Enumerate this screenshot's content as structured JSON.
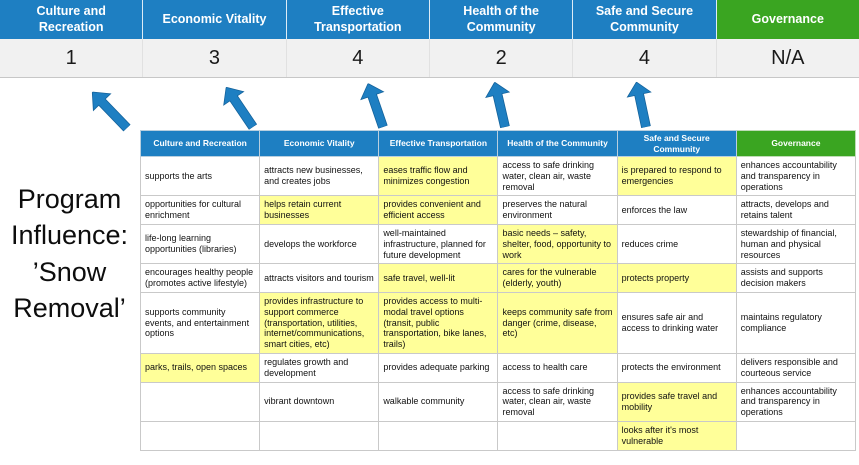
{
  "title": {
    "lines": [
      "Program",
      "Influence:",
      "’Snow",
      "Removal’"
    ]
  },
  "colors": {
    "header_blue": "#1E7FC2",
    "header_green": "#3AA521",
    "highlight_yellow": "#FFFF99",
    "score_band": "#F1F1F1",
    "arrow_blue": "#1E7FC2"
  },
  "scoreboard": {
    "columns": [
      {
        "label": "Culture and Recreation",
        "score": "1",
        "accent": "blue"
      },
      {
        "label": "Economic Vitality",
        "score": "3",
        "accent": "blue"
      },
      {
        "label": "Effective Transportation",
        "score": "4",
        "accent": "blue"
      },
      {
        "label": "Health of the Community",
        "score": "2",
        "accent": "blue"
      },
      {
        "label": "Safe and Secure Community",
        "score": "4",
        "accent": "blue"
      },
      {
        "label": "Governance",
        "score": "N/A",
        "accent": "green"
      }
    ]
  },
  "matrix": {
    "headers": [
      {
        "label": "Culture and Recreation",
        "accent": "blue"
      },
      {
        "label": "Economic Vitality",
        "accent": "blue"
      },
      {
        "label": "Effective Transportation",
        "accent": "blue"
      },
      {
        "label": "Health of the Community",
        "accent": "blue"
      },
      {
        "label": "Safe and Secure Community",
        "accent": "blue"
      },
      {
        "label": "Governance",
        "accent": "green"
      }
    ],
    "rows": [
      [
        {
          "text": "supports the arts",
          "highlight": false
        },
        {
          "text": "attracts new businesses, and creates jobs",
          "highlight": false
        },
        {
          "text": "eases traffic flow and minimizes congestion",
          "highlight": true
        },
        {
          "text": "access to safe drinking water, clean air, waste removal",
          "highlight": false
        },
        {
          "text": "is prepared to respond to emergencies",
          "highlight": true
        },
        {
          "text": "enhances accountability and transparency in operations",
          "highlight": false
        }
      ],
      [
        {
          "text": "opportunities for cultural enrichment",
          "highlight": false
        },
        {
          "text": "helps retain current businesses",
          "highlight": true
        },
        {
          "text": "provides convenient and efficient access",
          "highlight": true
        },
        {
          "text": "preserves the natural environment",
          "highlight": false
        },
        {
          "text": "enforces the law",
          "highlight": false
        },
        {
          "text": "attracts, develops and retains talent",
          "highlight": false
        }
      ],
      [
        {
          "text": "life-long learning opportunities (libraries)",
          "highlight": false
        },
        {
          "text": "develops the workforce",
          "highlight": false
        },
        {
          "text": "well-maintained infrastructure, planned for future development",
          "highlight": false
        },
        {
          "text": "basic needs – safety, shelter, food, opportunity to work",
          "highlight": true
        },
        {
          "text": "reduces crime",
          "highlight": false
        },
        {
          "text": "stewardship of financial, human and physical resources",
          "highlight": false
        }
      ],
      [
        {
          "text": "encourages healthy people (promotes active lifestyle)",
          "highlight": false
        },
        {
          "text": "attracts visitors and tourism",
          "highlight": false
        },
        {
          "text": "safe travel, well-lit",
          "highlight": true
        },
        {
          "text": "cares for the vulnerable (elderly, youth)",
          "highlight": true
        },
        {
          "text": "protects property",
          "highlight": true
        },
        {
          "text": "assists and supports decision makers",
          "highlight": false
        }
      ],
      [
        {
          "text": "supports community events, and entertainment options",
          "highlight": false
        },
        {
          "text": "provides infrastructure to support commerce (transportation, utilities, internet/communications, smart cities, etc)",
          "highlight": true
        },
        {
          "text": "provides access to multi-modal travel options (transit, public transportation, bike lanes, trails)",
          "highlight": true
        },
        {
          "text": "keeps community safe from danger (crime, disease, etc)",
          "highlight": true
        },
        {
          "text": "ensures safe air and access to drinking water",
          "highlight": false
        },
        {
          "text": "maintains regulatory compliance",
          "highlight": false
        }
      ],
      [
        {
          "text": "parks, trails, open spaces",
          "highlight": true
        },
        {
          "text": "regulates growth and development",
          "highlight": false
        },
        {
          "text": "provides adequate parking",
          "highlight": false
        },
        {
          "text": "access to health care",
          "highlight": false
        },
        {
          "text": "protects the environment",
          "highlight": false
        },
        {
          "text": "delivers responsible and courteous service",
          "highlight": false
        }
      ],
      [
        {
          "text": "",
          "highlight": false
        },
        {
          "text": "vibrant downtown",
          "highlight": false
        },
        {
          "text": "walkable community",
          "highlight": false
        },
        {
          "text": "access to safe drinking water, clean air, waste removal",
          "highlight": false
        },
        {
          "text": "provides safe travel and mobility",
          "highlight": true
        },
        {
          "text": "enhances accountability and transparency in operations",
          "highlight": false
        }
      ],
      [
        {
          "text": "",
          "highlight": false
        },
        {
          "text": "",
          "highlight": false
        },
        {
          "text": "",
          "highlight": false
        },
        {
          "text": "",
          "highlight": false
        },
        {
          "text": "looks after it's most vulnerable",
          "highlight": true
        },
        {
          "text": "",
          "highlight": false
        }
      ]
    ]
  }
}
